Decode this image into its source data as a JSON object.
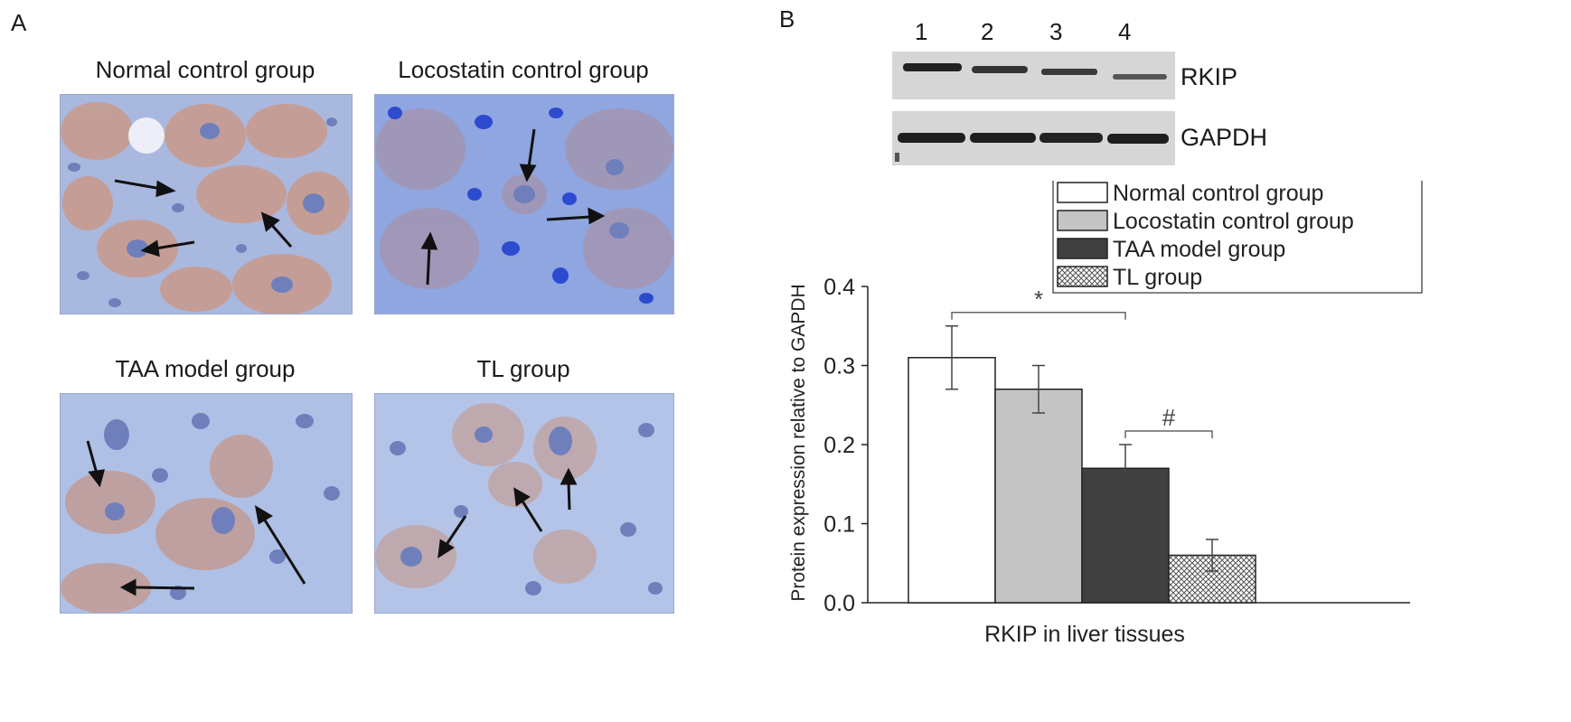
{
  "figure": {
    "panel_a_label": "A",
    "panel_b_label": "B",
    "micrographs": [
      {
        "title": "Normal control group"
      },
      {
        "title": "Locostatin control group"
      },
      {
        "title": "TAA model group"
      },
      {
        "title": "TL group"
      }
    ],
    "western_blot": {
      "lanes": [
        "1",
        "2",
        "3",
        "4"
      ],
      "bands": [
        "RKIP",
        "GAPDH"
      ]
    }
  },
  "chart_data": {
    "type": "bar",
    "xlabel": "RKIP in liver tissues",
    "ylabel": "Protein expression relative to GAPDH",
    "ylim": [
      0.0,
      0.4
    ],
    "yticks": [
      "0.0",
      "0.1",
      "0.2",
      "0.3",
      "0.4"
    ],
    "series": [
      {
        "name": "Normal control group",
        "value": 0.31,
        "error": 0.04,
        "fill": "#ffffff"
      },
      {
        "name": "Locostatin control group",
        "value": 0.27,
        "error": 0.03,
        "fill": "#c4c4c4"
      },
      {
        "name": "TAA model group",
        "value": 0.17,
        "error": 0.03,
        "fill": "#404040"
      },
      {
        "name": "TL group",
        "value": 0.06,
        "error": 0.02,
        "fill": "crosshatch"
      }
    ],
    "annotations": [
      {
        "text": "*",
        "from": 0,
        "to": 2
      },
      {
        "text": "#",
        "from": 2,
        "to": 3
      }
    ],
    "legend_position": "top-right",
    "grid": false
  }
}
